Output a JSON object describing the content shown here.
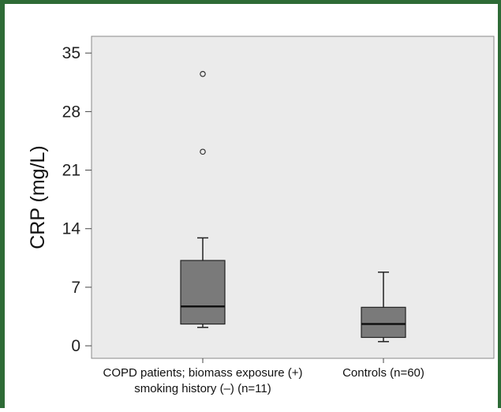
{
  "chart_data": {
    "type": "box",
    "ylabel": "CRP (mg/L)",
    "xlabel": "",
    "title": "",
    "ylim": [
      -1.5,
      37
    ],
    "yticks": [
      0,
      7,
      14,
      21,
      28,
      35
    ],
    "grid": false,
    "colors": {
      "frame": "#2e6b36",
      "plot_bg": "#ebebeb",
      "box_fill": "#7a7a7a",
      "stroke": "#222222"
    },
    "categories": [
      {
        "label_lines": [
          "COPD patients; biomass exposure (+)",
          "smoking history (–) (n=11)"
        ]
      },
      {
        "label_lines": [
          "Controls (n=60)"
        ]
      }
    ],
    "boxes": [
      {
        "whisker_low": 2.2,
        "q1": 2.6,
        "median": 4.7,
        "q3": 10.2,
        "whisker_high": 12.9,
        "outliers": [
          23.2,
          32.5
        ]
      },
      {
        "whisker_low": 0.5,
        "q1": 1.0,
        "median": 2.6,
        "q3": 4.6,
        "whisker_high": 8.8,
        "outliers": []
      }
    ]
  }
}
